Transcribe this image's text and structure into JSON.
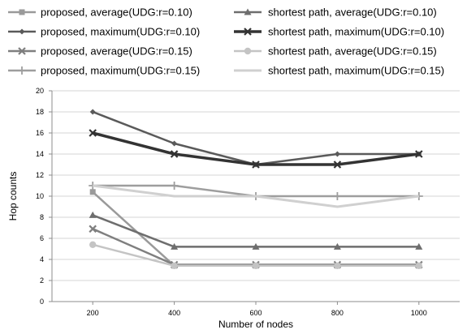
{
  "chart_data": {
    "type": "line",
    "title": "",
    "xlabel": "Number of nodes",
    "ylabel": "Hop counts",
    "x": [
      200,
      400,
      600,
      800,
      1000
    ],
    "xticks": [
      "200",
      "400",
      "600",
      "800",
      "1000"
    ],
    "ylim": [
      0,
      20
    ],
    "yticks": [
      "0",
      "2",
      "4",
      "6",
      "8",
      "10",
      "12",
      "14",
      "16",
      "18",
      "20"
    ],
    "grid": true,
    "legend_position": "top",
    "series": [
      {
        "name": "proposed, average(UDG:r=0.10)",
        "values": [
          10.4,
          3.4,
          3.4,
          3.4,
          3.4
        ],
        "color": "#9a9a9a",
        "marker": "square",
        "width": 2.5
      },
      {
        "name": "shortest path, average(UDG:r=0.10)",
        "values": [
          8.2,
          5.2,
          5.2,
          5.2,
          5.2
        ],
        "color": "#6e6e6e",
        "marker": "triangle",
        "width": 2.5
      },
      {
        "name": "proposed, maximum(UDG:r=0.10)",
        "values": [
          18,
          15,
          13,
          14,
          14
        ],
        "color": "#5a5a5a",
        "marker": "diamond",
        "width": 2.5
      },
      {
        "name": "shortest path, maximum(UDG:r=0.10)",
        "values": [
          16,
          14,
          13,
          13,
          14
        ],
        "color": "#333333",
        "marker": "x",
        "width": 3.5
      },
      {
        "name": "proposed, average(UDG:r=0.15)",
        "values": [
          6.9,
          3.5,
          3.5,
          3.5,
          3.5
        ],
        "color": "#7f7f7f",
        "marker": "x",
        "width": 2.5
      },
      {
        "name": "shortest path, average(UDG:r=0.15)",
        "values": [
          5.4,
          3.4,
          3.4,
          3.4,
          3.4
        ],
        "color": "#c4c4c4",
        "marker": "circle",
        "width": 2.5
      },
      {
        "name": "proposed, maximum(UDG:r=0.15)",
        "values": [
          11,
          11,
          10,
          10,
          10
        ],
        "color": "#9e9e9e",
        "marker": "plus",
        "width": 2.5
      },
      {
        "name": "shortest path, maximum(UDG:r=0.15)",
        "values": [
          11,
          10,
          10,
          9,
          10
        ],
        "color": "#d0d0d0",
        "marker": "none",
        "width": 3
      }
    ]
  }
}
